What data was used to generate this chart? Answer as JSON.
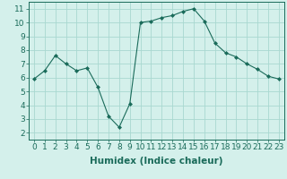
{
  "x": [
    0,
    1,
    2,
    3,
    4,
    5,
    6,
    7,
    8,
    9,
    10,
    11,
    12,
    13,
    14,
    15,
    16,
    17,
    18,
    19,
    20,
    21,
    22,
    23
  ],
  "y": [
    5.9,
    6.5,
    7.6,
    7.0,
    6.5,
    6.7,
    5.3,
    3.2,
    2.4,
    4.1,
    10.0,
    10.1,
    10.35,
    10.5,
    10.8,
    11.0,
    10.1,
    8.5,
    7.8,
    7.5,
    7.0,
    6.6,
    6.1,
    5.9
  ],
  "line_color": "#1a6b5a",
  "marker": "D",
  "marker_size": 2.0,
  "bg_color": "#d4f0eb",
  "grid_color": "#a8d8d0",
  "xlabel": "Humidex (Indice chaleur)",
  "ylabel": "",
  "xlim": [
    -0.5,
    23.5
  ],
  "ylim": [
    1.5,
    11.5
  ],
  "xticks": [
    0,
    1,
    2,
    3,
    4,
    5,
    6,
    7,
    8,
    9,
    10,
    11,
    12,
    13,
    14,
    15,
    16,
    17,
    18,
    19,
    20,
    21,
    22,
    23
  ],
  "yticks": [
    2,
    3,
    4,
    5,
    6,
    7,
    8,
    9,
    10,
    11
  ],
  "tick_fontsize": 6.5,
  "xlabel_fontsize": 7.5,
  "label_color": "#1a6b5a"
}
